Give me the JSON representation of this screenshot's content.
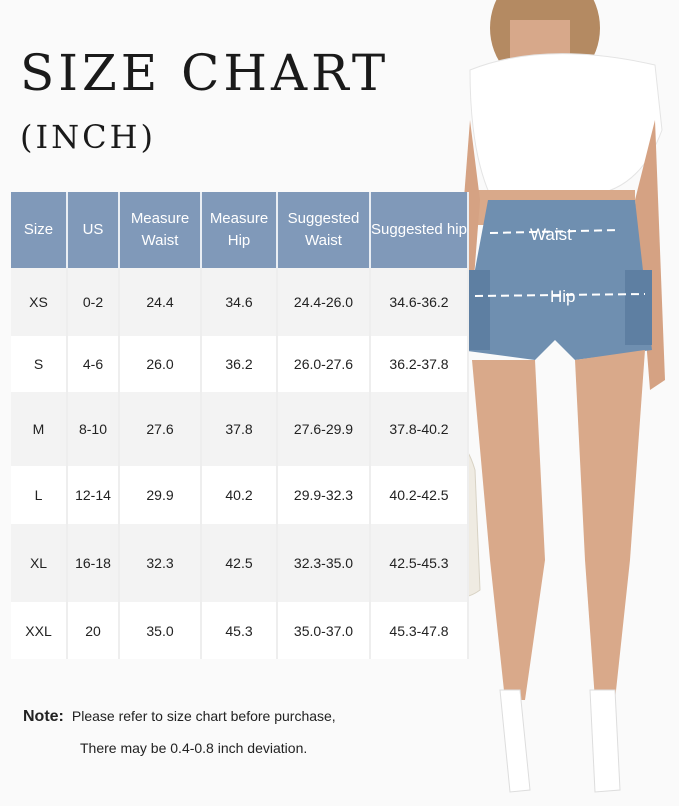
{
  "title": "SIZE CHART",
  "subtitle": "(INCH)",
  "table": {
    "headers": [
      "Size",
      "US",
      "Measure Waist",
      "Measure Hip",
      "Suggested Waist",
      "Suggested hip"
    ],
    "rows": [
      [
        "XS",
        "0-2",
        "24.4",
        "34.6",
        "24.4-26.0",
        "34.6-36.2"
      ],
      [
        "S",
        "4-6",
        "26.0",
        "36.2",
        "26.0-27.6",
        "36.2-37.8"
      ],
      [
        "M",
        "8-10",
        "27.6",
        "37.8",
        "27.6-29.9",
        "37.8-40.2"
      ],
      [
        "L",
        "12-14",
        "29.9",
        "40.2",
        "29.9-32.3",
        "40.2-42.5"
      ],
      [
        "XL",
        "16-18",
        "32.3",
        "42.5",
        "32.3-35.0",
        "42.5-45.3"
      ],
      [
        "XXL",
        "20",
        "35.0",
        "45.3",
        "35.0-37.0",
        "45.3-47.8"
      ]
    ]
  },
  "note": {
    "label": "Note:",
    "line1": "Please refer to size chart before purchase,",
    "line2": "There may be 0.4-0.8 inch deviation."
  },
  "model": {
    "waist_label": "Waist",
    "hip_label": "Hip"
  },
  "colors": {
    "header": "#8099b9",
    "denim": "#6f8fb0"
  }
}
